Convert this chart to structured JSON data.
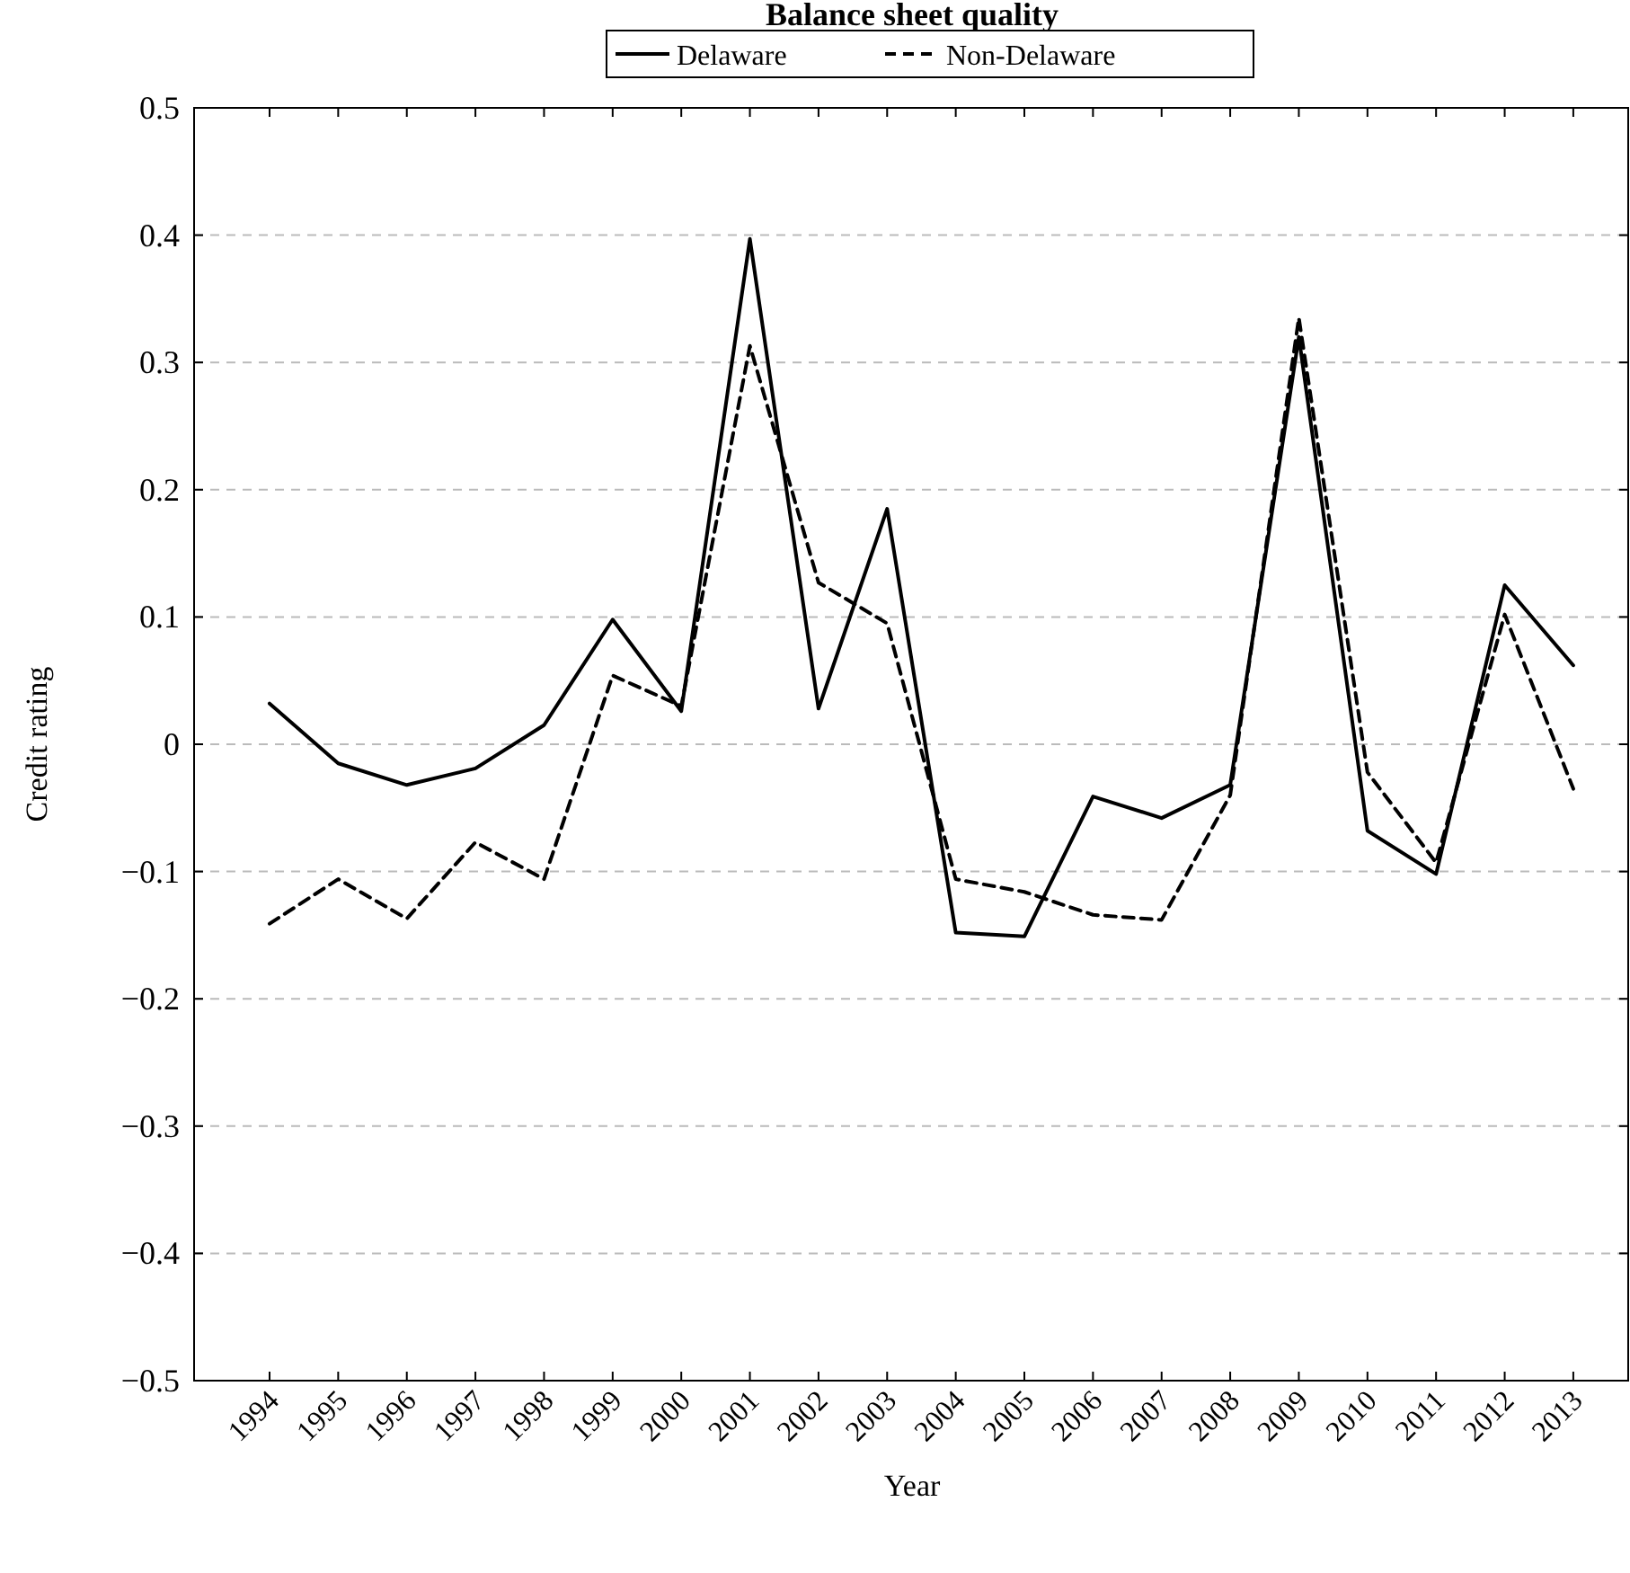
{
  "chart_data": {
    "type": "line",
    "title": "Balance sheet quality",
    "xlabel": "Year",
    "ylabel": "Credit rating",
    "x": [
      1994,
      1995,
      1996,
      1997,
      1998,
      1999,
      2000,
      2001,
      2002,
      2003,
      2004,
      2005,
      2006,
      2007,
      2008,
      2009,
      2010,
      2011,
      2012,
      2013
    ],
    "series": [
      {
        "name": "Delaware",
        "color": "#000000",
        "line_style": "solid",
        "values": [
          0.032,
          -0.015,
          -0.032,
          -0.019,
          0.015,
          0.098,
          0.026,
          0.397,
          0.028,
          0.185,
          -0.148,
          -0.151,
          -0.041,
          -0.058,
          -0.032,
          0.32,
          -0.068,
          -0.102,
          0.125,
          0.062
        ]
      },
      {
        "name": "Non-Delaware",
        "color": "#000000",
        "line_style": "dashed",
        "values": [
          -0.141,
          -0.106,
          -0.137,
          -0.077,
          -0.106,
          0.054,
          0.03,
          0.313,
          0.127,
          0.095,
          -0.106,
          -0.116,
          -0.134,
          -0.138,
          -0.04,
          0.335,
          -0.022,
          -0.093,
          0.102,
          -0.035
        ]
      }
    ],
    "xlim": [
      1992.9,
      2013.8
    ],
    "xticks": [
      1994,
      1995,
      1996,
      1997,
      1998,
      1999,
      2000,
      2001,
      2002,
      2003,
      2004,
      2005,
      2006,
      2007,
      2008,
      2009,
      2010,
      2011,
      2012,
      2013
    ],
    "ylim": [
      -0.5,
      0.5
    ],
    "yticks": [
      {
        "value": -0.5,
        "label": "−0.5"
      },
      {
        "value": -0.4,
        "label": "−0.4"
      },
      {
        "value": -0.3,
        "label": "−0.3"
      },
      {
        "value": -0.2,
        "label": "−0.2"
      },
      {
        "value": -0.1,
        "label": "−0.1"
      },
      0,
      0.1,
      0.2,
      0.3,
      0.4,
      0.5
    ],
    "grid": "y",
    "legend": "top",
    "marker": "none"
  }
}
